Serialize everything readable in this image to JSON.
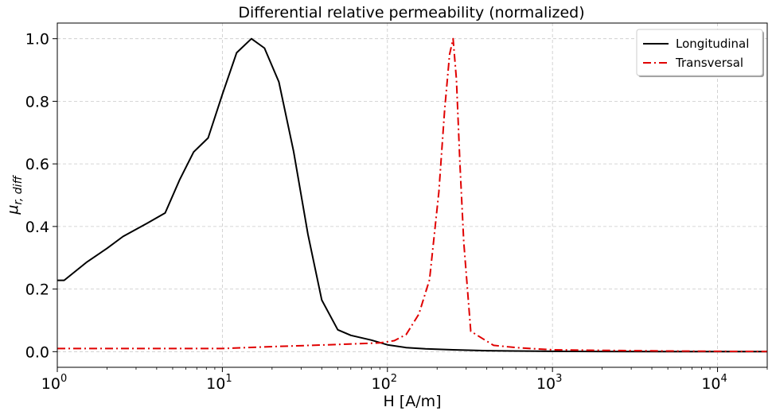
{
  "chart_data": {
    "type": "line",
    "title": "Differential relative permeability (normalized)",
    "xlabel": "H [A/m]",
    "ylabel": "μr, diff",
    "xscale": "log",
    "xlim": [
      1,
      20000
    ],
    "ylim": [
      -0.05,
      1.05
    ],
    "xticks": [
      {
        "value": 1,
        "base": "10",
        "exp": "0"
      },
      {
        "value": 10,
        "base": "10",
        "exp": "1"
      },
      {
        "value": 100,
        "base": "10",
        "exp": "2"
      },
      {
        "value": 1000,
        "base": "10",
        "exp": "3"
      },
      {
        "value": 10000,
        "base": "10",
        "exp": "4"
      }
    ],
    "yticks": [
      {
        "value": 0.0,
        "label": "0.0"
      },
      {
        "value": 0.2,
        "label": "0.2"
      },
      {
        "value": 0.4,
        "label": "0.4"
      },
      {
        "value": 0.6,
        "label": "0.6"
      },
      {
        "value": 0.8,
        "label": "0.8"
      },
      {
        "value": 1.0,
        "label": "1.0"
      }
    ],
    "grid": true,
    "legend_position": "top-right",
    "series": [
      {
        "name": "Longitudinal",
        "color": "#000000",
        "style": "solid",
        "x": [
          1,
          1.1,
          1.5,
          2,
          2.5,
          3.5,
          4.5,
          5.5,
          6.7,
          8.2,
          10,
          12.2,
          15,
          18,
          22,
          27,
          33,
          40,
          50,
          60,
          80,
          100,
          130,
          170,
          250,
          400,
          600,
          1000,
          2000,
          5000,
          20000
        ],
        "y": [
          0.228,
          0.228,
          0.285,
          0.33,
          0.368,
          0.41,
          0.443,
          0.548,
          0.638,
          0.683,
          0.822,
          0.955,
          1.0,
          0.97,
          0.862,
          0.64,
          0.375,
          0.165,
          0.07,
          0.052,
          0.037,
          0.022,
          0.013,
          0.009,
          0.006,
          0.003,
          0.002,
          0.001,
          0.0005,
          0.0002,
          0.0001
        ]
      },
      {
        "name": "Transversal",
        "color": "#e00000",
        "style": "dashdot",
        "x": [
          1,
          2,
          5,
          10,
          20,
          50,
          90,
          110,
          130,
          155,
          180,
          205,
          222,
          238,
          250,
          262,
          275,
          290,
          320,
          440,
          600,
          800,
          1000,
          2000,
          5000,
          10000,
          20000
        ],
        "y": [
          0.01,
          0.01,
          0.01,
          0.01,
          0.016,
          0.023,
          0.028,
          0.035,
          0.055,
          0.12,
          0.23,
          0.51,
          0.77,
          0.95,
          1.0,
          0.87,
          0.6,
          0.35,
          0.065,
          0.02,
          0.013,
          0.009,
          0.006,
          0.004,
          0.002,
          0.001,
          0.0005
        ]
      }
    ]
  }
}
